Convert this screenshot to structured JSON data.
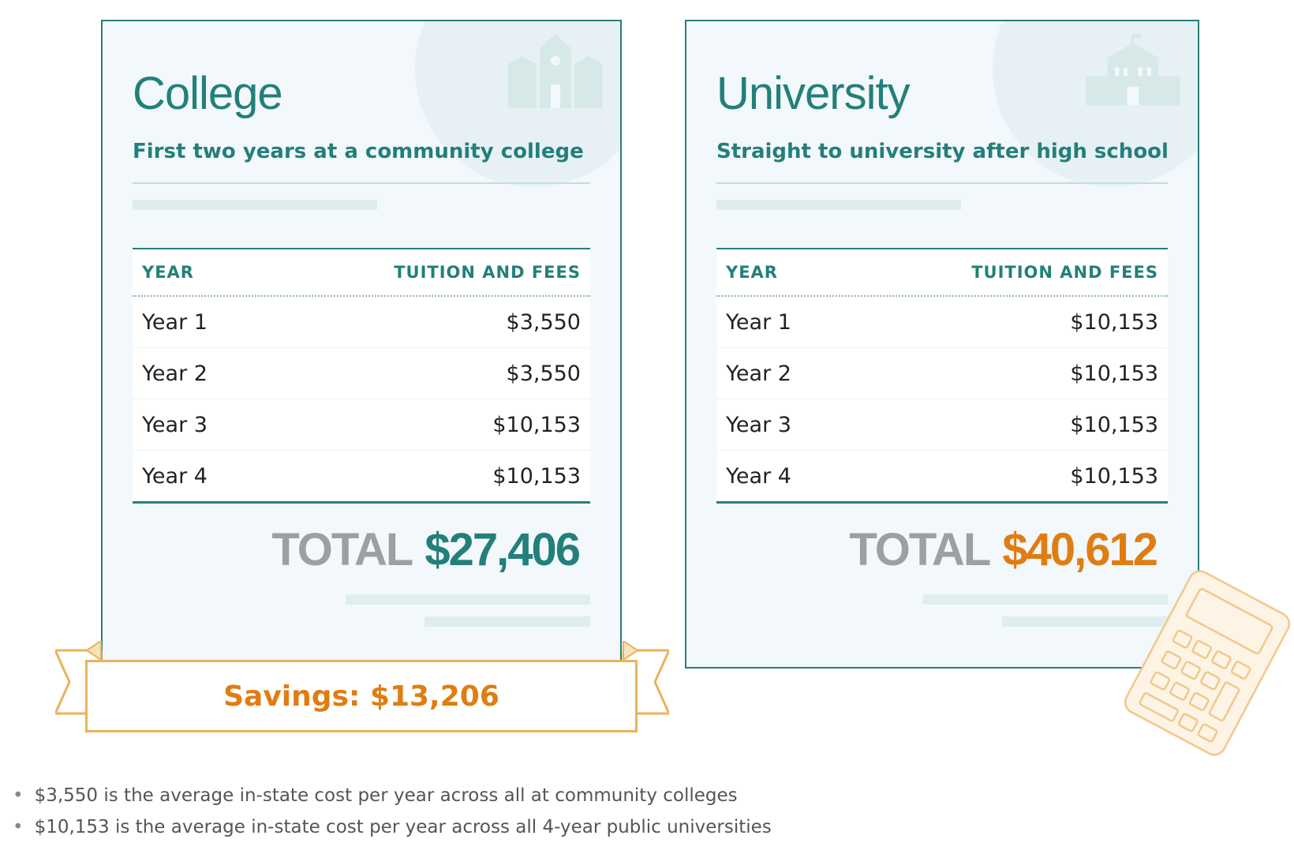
{
  "college": {
    "title": "College",
    "subtitle": "First two years at a community college",
    "table": {
      "col_year": "YEAR",
      "col_cost": "TUITION AND FEES",
      "rows": [
        {
          "year": "Year 1",
          "cost": "$3,550"
        },
        {
          "year": "Year 2",
          "cost": "$3,550"
        },
        {
          "year": "Year 3",
          "cost": "$10,153"
        },
        {
          "year": "Year 4",
          "cost": "$10,153"
        }
      ]
    },
    "total_label": "TOTAL",
    "total_amount": "$27,406",
    "icon": "college-building-icon"
  },
  "university": {
    "title": "University",
    "subtitle": "Straight to university after high school",
    "table": {
      "col_year": "YEAR",
      "col_cost": "TUITION AND FEES",
      "rows": [
        {
          "year": "Year 1",
          "cost": "$10,153"
        },
        {
          "year": "Year 2",
          "cost": "$10,153"
        },
        {
          "year": "Year 3",
          "cost": "$10,153"
        },
        {
          "year": "Year 4",
          "cost": "$10,153"
        }
      ]
    },
    "total_label": "TOTAL",
    "total_amount": "$40,612",
    "icon": "university-building-icon"
  },
  "savings": {
    "label": "Savings: $13,206"
  },
  "notes": [
    "$3,550 is the average in-state cost per year across all at community colleges",
    "$10,153 is the average in-state cost per year across all 4-year public universities"
  ],
  "colors": {
    "teal": "#237f7a",
    "orange": "#e07d12",
    "gold_border": "#e9b35a",
    "total_label_gray": "#9aa0a4",
    "card_bg": "#f2f8fb"
  }
}
